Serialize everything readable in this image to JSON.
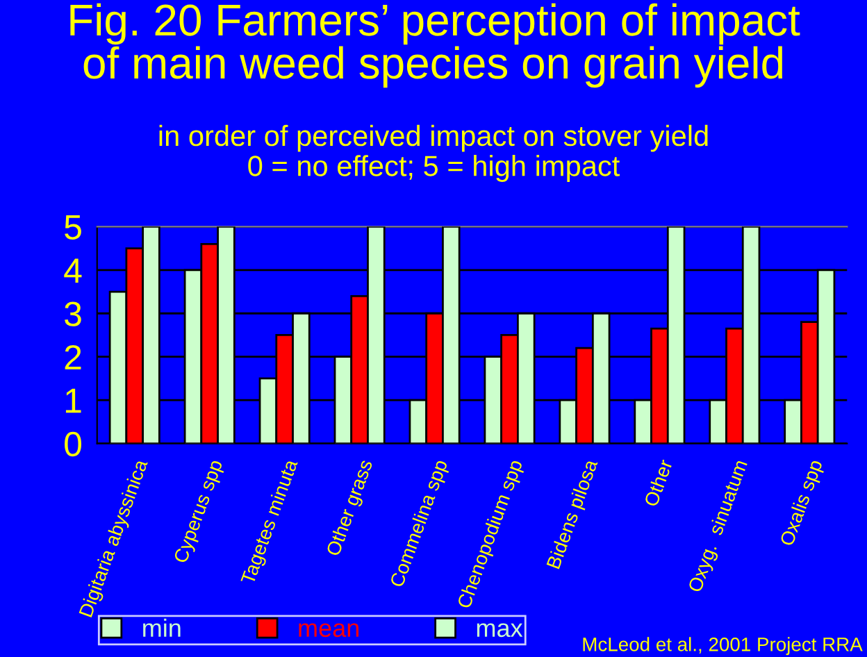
{
  "chart_data": {
    "type": "bar",
    "title": "Fig. 20 Farmers’ perception of impact\nof main weed species on grain yield",
    "subtitle": "in order of perceived impact on stover yield\n0 = no effect; 5 = high impact",
    "categories": [
      "Digitaria abyssinica",
      "Cyperus spp",
      "Tagetes minuta",
      "Other grass",
      "Commelina spp",
      "Chenopodium spp",
      "Bidens pilosa",
      "Other",
      "Oxyg.  sinuatum",
      "Oxalis spp"
    ],
    "series": [
      {
        "name": "min",
        "color": "#ccffcc",
        "values": [
          3.5,
          4,
          1.5,
          2,
          1,
          2,
          1,
          1,
          1,
          1
        ]
      },
      {
        "name": "mean",
        "color": "#ff0000",
        "values": [
          4.5,
          4.6,
          2.5,
          3.4,
          3.0,
          2.5,
          2.2,
          2.65,
          2.65,
          2.8
        ]
      },
      {
        "name": "max",
        "color": "#ccffcc",
        "values": [
          5,
          5,
          3,
          5,
          5,
          3,
          3,
          5,
          5,
          4
        ]
      }
    ],
    "ylim": [
      0,
      5
    ],
    "yticks": [
      0,
      1,
      2,
      3,
      4,
      5
    ],
    "grid": "y",
    "legend": "bottom",
    "annotations": [
      "McLeod et al., 2001 Project RRA"
    ]
  }
}
